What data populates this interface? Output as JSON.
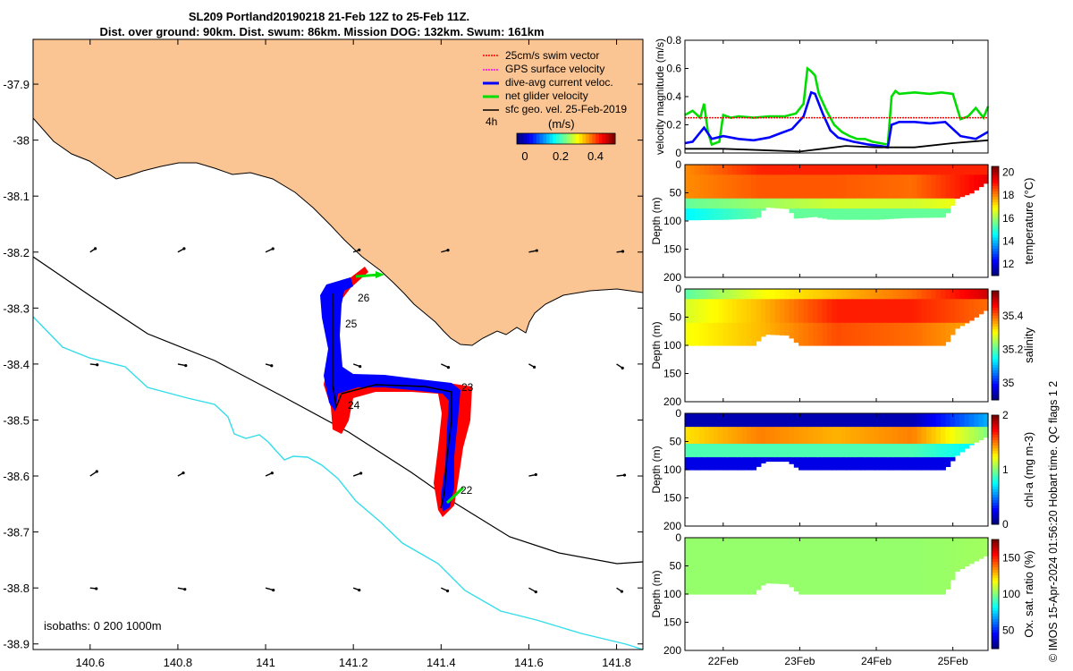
{
  "header": {
    "title_line1": "SL209 Portland20190218 21-Feb 12Z to 25-Feb 11Z.",
    "title_line2": "Dist. over ground: 90km. Dist. swum: 86km. Mission DOG: 132km. Swum: 161km"
  },
  "footer": "© IMOS 15-Apr-2024 01:56:20 Hobart time. QC flags 1  2",
  "colors": {
    "land": "#fbc593",
    "isobath_200": "#000000",
    "isobath_1000": "#33dde9",
    "swim_vector": "#ff0000",
    "gps_velocity": "#ff00ff",
    "current": "#0000ff",
    "net_velocity": "#00dd00",
    "geo_vel": "#000000"
  },
  "map": {
    "x_ticks": [
      "140.6",
      "140.8",
      "141",
      "141.2",
      "141.4",
      "141.6",
      "141.8"
    ],
    "y_ticks": [
      "-37.9",
      "-38",
      "-38.1",
      "-38.2",
      "-38.3",
      "-38.4",
      "-38.5",
      "-38.6",
      "-38.7",
      "-38.8",
      "-38.9"
    ],
    "xlim": [
      140.47,
      141.86
    ],
    "ylim": [
      -38.91,
      -37.82
    ],
    "isobath_label": "isobaths: 0   200  1000m",
    "track_labels": [
      "26",
      "25",
      "24",
      "23",
      "22"
    ],
    "legend": {
      "items": [
        {
          "label": "25cm/s swim vector",
          "color": "#ff0000"
        },
        {
          "label": "GPS surface velocity",
          "color": "#ff00ff"
        },
        {
          "label": "dive-avg current veloc.",
          "color": "#0000ff"
        },
        {
          "label": "net glider velocity",
          "color": "#00dd00"
        },
        {
          "label": "sfc geo. vel. 25-Feb-2019",
          "color": "#000000"
        }
      ],
      "age_label": "4h",
      "unit_label": "(m/s)",
      "colorbar_ticks": [
        "0",
        "0.2",
        "0.4"
      ]
    }
  },
  "chart_data": [
    {
      "type": "line",
      "xlabel": "",
      "ylabel": "velocity magnitude (m/s)",
      "ylim": [
        0,
        0.8
      ],
      "y_ticks": [
        "0",
        "0.2",
        "0.4",
        "0.6",
        "0.8"
      ],
      "x_days": [
        21.5,
        25.46
      ],
      "x_tick_labels": [
        "22Feb",
        "23Feb",
        "24Feb",
        "25Feb"
      ],
      "series": [
        {
          "color": "#00dd00",
          "x": [
            21.5,
            21.6,
            21.7,
            21.75,
            21.8,
            21.85,
            21.95,
            22.0,
            22.1,
            22.2,
            22.4,
            22.6,
            22.8,
            22.95,
            23.05,
            23.1,
            23.15,
            23.2,
            23.25,
            23.35,
            23.45,
            23.55,
            23.65,
            23.75,
            23.85,
            23.95,
            24.05,
            24.15,
            24.2,
            24.25,
            24.3,
            24.5,
            24.7,
            24.85,
            25.0,
            25.1,
            25.2,
            25.3,
            25.4,
            25.46
          ],
          "values": [
            0.27,
            0.3,
            0.25,
            0.35,
            0.15,
            0.06,
            0.08,
            0.27,
            0.25,
            0.26,
            0.25,
            0.26,
            0.26,
            0.28,
            0.35,
            0.6,
            0.58,
            0.55,
            0.42,
            0.3,
            0.2,
            0.15,
            0.12,
            0.1,
            0.1,
            0.08,
            0.07,
            0.06,
            0.4,
            0.44,
            0.42,
            0.43,
            0.42,
            0.43,
            0.42,
            0.24,
            0.26,
            0.32,
            0.25,
            0.33
          ]
        },
        {
          "color": "#0000ff",
          "x": [
            21.5,
            21.6,
            21.75,
            21.85,
            22.0,
            22.2,
            22.4,
            22.6,
            22.75,
            22.9,
            23.05,
            23.15,
            23.2,
            23.3,
            23.4,
            23.5,
            23.7,
            23.9,
            24.05,
            24.15,
            24.2,
            24.3,
            24.5,
            24.7,
            24.9,
            25.1,
            25.3,
            25.46
          ],
          "values": [
            0.07,
            0.08,
            0.18,
            0.1,
            0.12,
            0.1,
            0.09,
            0.11,
            0.14,
            0.17,
            0.26,
            0.43,
            0.42,
            0.28,
            0.16,
            0.11,
            0.08,
            0.06,
            0.05,
            0.04,
            0.2,
            0.22,
            0.22,
            0.21,
            0.22,
            0.12,
            0.1,
            0.15
          ]
        },
        {
          "color": "#000000",
          "x": [
            21.5,
            22.0,
            22.5,
            23.0,
            23.3,
            23.6,
            24.0,
            24.5,
            25.0,
            25.46
          ],
          "values": [
            0.03,
            0.03,
            0.02,
            0.01,
            0.03,
            0.05,
            0.04,
            0.04,
            0.07,
            0.09
          ]
        },
        {
          "color": "#ff0000",
          "x": [
            21.5,
            25.46
          ],
          "values": [
            0.25,
            0.25
          ]
        }
      ]
    },
    {
      "type": "heatmap",
      "variable": "temperature (°C)",
      "ylabel": "Depth (m)",
      "ylim": [
        200,
        0
      ],
      "y_ticks": [
        "0",
        "50",
        "100",
        "150",
        "200"
      ],
      "colorbar_ticks": [
        "12",
        "14",
        "16",
        "18",
        "20"
      ],
      "clim": [
        11,
        20.5
      ],
      "x_days": [
        21.5,
        25.46
      ],
      "x_tick_labels": [
        "22Feb",
        "23Feb",
        "24Feb",
        "25Feb"
      ],
      "bottom_depth": [
        [
          21.5,
          98
        ],
        [
          22.0,
          97
        ],
        [
          22.45,
          95
        ],
        [
          22.55,
          75
        ],
        [
          22.85,
          78
        ],
        [
          22.95,
          95
        ],
        [
          23.2,
          92
        ],
        [
          23.4,
          97
        ],
        [
          24.0,
          97
        ],
        [
          24.4,
          94
        ],
        [
          24.9,
          93
        ],
        [
          25.05,
          60
        ],
        [
          25.25,
          50
        ],
        [
          25.46,
          30
        ]
      ],
      "profile": [
        {
          "dmax": 20,
          "values": [
            18,
            19,
            19,
            19,
            19
          ]
        },
        {
          "dmax": 60,
          "values": [
            18,
            18.5,
            18.5,
            18.3,
            19.5
          ]
        },
        {
          "dmax": 80,
          "values": [
            15.5,
            16,
            16.5,
            16.5,
            17
          ]
        },
        {
          "dmax": 100,
          "values": [
            14.5,
            15.5,
            15.5,
            15.5,
            15.5
          ]
        }
      ]
    },
    {
      "type": "heatmap",
      "variable": "salinity",
      "ylabel": "Depth (m)",
      "ylim": [
        200,
        0
      ],
      "y_ticks": [
        "0",
        "50",
        "100",
        "150",
        "200"
      ],
      "colorbar_ticks": [
        "35",
        "35.2",
        "35.4"
      ],
      "clim": [
        34.9,
        35.55
      ],
      "x_days": [
        21.5,
        25.46
      ],
      "x_tick_labels": [
        "22Feb",
        "23Feb",
        "24Feb",
        "25Feb"
      ],
      "bottom_depth": [
        [
          21.5,
          100
        ],
        [
          22.4,
          100
        ],
        [
          22.55,
          80
        ],
        [
          22.85,
          82
        ],
        [
          23.0,
          100
        ],
        [
          24.9,
          100
        ],
        [
          25.05,
          70
        ],
        [
          25.25,
          55
        ],
        [
          25.46,
          35
        ]
      ],
      "profile": [
        {
          "dmax": 20,
          "values": [
            35.2,
            35.3,
            35.35,
            35.4,
            35.5
          ]
        },
        {
          "dmax": 60,
          "values": [
            35.28,
            35.35,
            35.45,
            35.45,
            35.4
          ]
        },
        {
          "dmax": 100,
          "values": [
            35.3,
            35.35,
            35.42,
            35.4,
            35.35
          ]
        }
      ]
    },
    {
      "type": "heatmap",
      "variable": "chl-a (mg m-3)",
      "ylabel": "Depth (m)",
      "ylim": [
        200,
        0
      ],
      "y_ticks": [
        "0",
        "50",
        "100",
        "150",
        "200"
      ],
      "colorbar_ticks": [
        "0",
        "1",
        "2"
      ],
      "clim": [
        0,
        2
      ],
      "x_days": [
        21.5,
        25.46
      ],
      "x_tick_labels": [
        "22Feb",
        "23Feb",
        "24Feb",
        "25Feb"
      ],
      "bottom_depth": [
        [
          21.5,
          100
        ],
        [
          22.4,
          100
        ],
        [
          22.55,
          85
        ],
        [
          22.85,
          85
        ],
        [
          23.0,
          100
        ],
        [
          24.9,
          100
        ],
        [
          25.05,
          75
        ],
        [
          25.25,
          55
        ],
        [
          25.46,
          40
        ]
      ],
      "profile": [
        {
          "dmax": 25,
          "values": [
            0.1,
            0.1,
            0.1,
            0.1,
            0.6
          ]
        },
        {
          "dmax": 55,
          "values": [
            1.3,
            1.5,
            1.4,
            1.5,
            1.0
          ]
        },
        {
          "dmax": 75,
          "values": [
            0.9,
            0.9,
            0.9,
            0.9,
            0.7
          ]
        },
        {
          "dmax": 100,
          "values": [
            0.2,
            0.2,
            0.2,
            0.2,
            0.2
          ]
        }
      ]
    },
    {
      "type": "heatmap",
      "variable": "Ox. sat. ratio (%)",
      "ylabel": "Depth (m)",
      "ylim": [
        200,
        0
      ],
      "y_ticks": [
        "0",
        "50",
        "100",
        "150",
        "200"
      ],
      "colorbar_ticks": [
        "50",
        "100",
        "150"
      ],
      "clim": [
        25,
        175
      ],
      "x_days": [
        21.5,
        25.46
      ],
      "x_tick_labels": [
        "22Feb",
        "23Feb",
        "24Feb",
        "25Feb"
      ],
      "bottom_depth": [
        [
          21.5,
          100
        ],
        [
          22.4,
          100
        ],
        [
          22.55,
          80
        ],
        [
          22.85,
          82
        ],
        [
          23.0,
          100
        ],
        [
          24.9,
          100
        ],
        [
          25.05,
          60
        ],
        [
          25.25,
          45
        ],
        [
          25.46,
          30
        ]
      ],
      "profile": [
        {
          "dmax": 100,
          "values": [
            103,
            103,
            103,
            103,
            105
          ]
        }
      ]
    }
  ]
}
